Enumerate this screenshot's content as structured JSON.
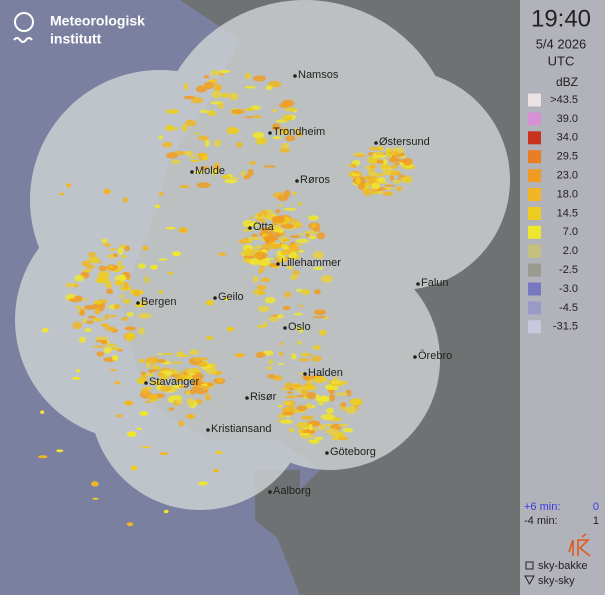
{
  "logo": {
    "line1": "Meteorologisk",
    "line2": "institutt"
  },
  "time": "19:40",
  "date": "5/4 2026",
  "zone": "UTC",
  "unit": "dBZ",
  "legend": [
    {
      "label": ">43.5",
      "color": "#ece2e6"
    },
    {
      "label": "39.0",
      "color": "#d890d4"
    },
    {
      "label": "34.0",
      "color": "#c8321e"
    },
    {
      "label": "29.5",
      "color": "#ea7e22"
    },
    {
      "label": "23.0",
      "color": "#f09c22"
    },
    {
      "label": "18.0",
      "color": "#f0b626"
    },
    {
      "label": "14.5",
      "color": "#eccc1e"
    },
    {
      "label": "7.0",
      "color": "#f0e62e"
    },
    {
      "label": "2.0",
      "color": "#c6c07e"
    },
    {
      "label": "-2.5",
      "color": "#9a9a90"
    },
    {
      "label": "-3.0",
      "color": "#7878c0"
    },
    {
      "label": "-4.5",
      "color": "#9a9ac8"
    },
    {
      "label": "-31.5",
      "color": "#c8c8de"
    }
  ],
  "lightning": [
    {
      "label": "+6 min:",
      "count": 0
    },
    {
      "label": "-4 min:",
      "count": 1
    }
  ],
  "symbols": [
    "sky-bakke",
    "sky-sky"
  ],
  "cities": [
    "Namsos",
    "Trondheim",
    "Østersund",
    "Molde",
    "Røros",
    "Otta",
    "Lillehammer",
    "Falun",
    "Bergen",
    "Geilo",
    "Oslo",
    "Örebro",
    "Halden",
    "Stavanger",
    "Risør",
    "Kristiansand",
    "Göteborg",
    "Aalborg"
  ]
}
